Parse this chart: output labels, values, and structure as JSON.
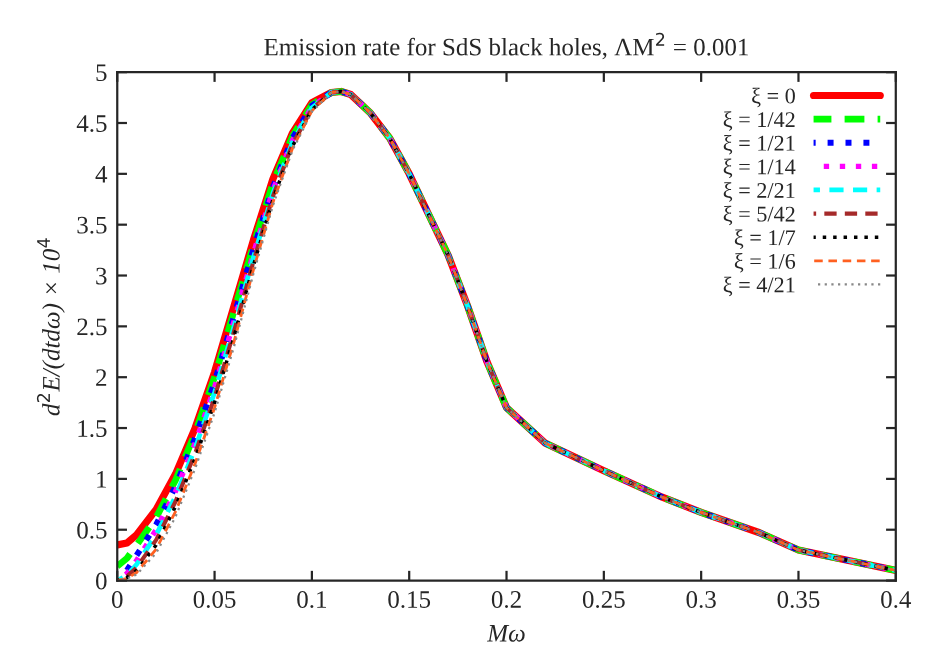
{
  "chart_data": {
    "type": "line",
    "title": "Emission rate for SdS black holes, ΛM$^{2}$ = 0.001",
    "xlabel": "Mω",
    "ylabel": "d$^{2}$E/(dtdω) × 10$^{4}$",
    "x": [
      0,
      0.005,
      0.01,
      0.02,
      0.03,
      0.04,
      0.05,
      0.06,
      0.07,
      0.08,
      0.09,
      0.1,
      0.11,
      0.115,
      0.12,
      0.13,
      0.14,
      0.15,
      0.16,
      0.17,
      0.18,
      0.19,
      0.2,
      0.22,
      0.25,
      0.28,
      0.3,
      0.33,
      0.35,
      0.38,
      0.4
    ],
    "xlim": [
      0,
      0.4
    ],
    "ylim": [
      0,
      5
    ],
    "xticks": [
      0,
      0.05,
      0.1,
      0.15,
      0.2,
      0.25,
      0.3,
      0.35,
      0.4
    ],
    "yticks": [
      0,
      0.5,
      1,
      1.5,
      2,
      2.5,
      3,
      3.5,
      4,
      4.5,
      5
    ],
    "legend": "top right",
    "grid": false,
    "series": [
      {
        "name": "ξ = 0",
        "color": "#ff0000",
        "line_style": "solid",
        "values": [
          0.35,
          0.37,
          0.45,
          0.7,
          1.05,
          1.5,
          2.05,
          2.7,
          3.35,
          3.95,
          4.4,
          4.7,
          4.8,
          4.81,
          4.78,
          4.6,
          4.35,
          4.0,
          3.6,
          3.2,
          2.7,
          2.15,
          1.7,
          1.35,
          1.08,
          0.82,
          0.67,
          0.47,
          0.3,
          0.18,
          0.1
        ]
      },
      {
        "name": "ξ = 1/42",
        "color": "#00ff00",
        "line_style": "dashed",
        "values": [
          0.14,
          0.22,
          0.35,
          0.62,
          0.99,
          1.45,
          2.0,
          2.65,
          3.3,
          3.91,
          4.37,
          4.68,
          4.8,
          4.81,
          4.78,
          4.6,
          4.35,
          4.0,
          3.6,
          3.2,
          2.7,
          2.15,
          1.7,
          1.35,
          1.08,
          0.82,
          0.67,
          0.47,
          0.3,
          0.18,
          0.1
        ]
      },
      {
        "name": "ξ = 1/21",
        "color": "#0000ff",
        "line_style": "dotted",
        "values": [
          0,
          0.1,
          0.25,
          0.55,
          0.93,
          1.4,
          1.95,
          2.6,
          3.26,
          3.87,
          4.35,
          4.67,
          4.8,
          4.81,
          4.78,
          4.6,
          4.35,
          4.0,
          3.6,
          3.2,
          2.7,
          2.15,
          1.7,
          1.35,
          1.08,
          0.82,
          0.67,
          0.47,
          0.3,
          0.18,
          0.1
        ]
      },
      {
        "name": "ξ = 1/14",
        "color": "#ff00ff",
        "line_style": "dotted",
        "values": [
          0,
          0.07,
          0.2,
          0.5,
          0.88,
          1.35,
          1.9,
          2.55,
          3.22,
          3.84,
          4.33,
          4.66,
          4.8,
          4.81,
          4.78,
          4.6,
          4.35,
          4.0,
          3.6,
          3.2,
          2.7,
          2.15,
          1.7,
          1.35,
          1.08,
          0.82,
          0.67,
          0.47,
          0.3,
          0.18,
          0.1
        ]
      },
      {
        "name": "ξ = 2/21",
        "color": "#00ffff",
        "line_style": "dashed",
        "values": [
          0,
          0.05,
          0.16,
          0.45,
          0.83,
          1.3,
          1.85,
          2.5,
          3.18,
          3.81,
          4.31,
          4.65,
          4.8,
          4.81,
          4.78,
          4.6,
          4.35,
          4.0,
          3.6,
          3.2,
          2.7,
          2.15,
          1.7,
          1.35,
          1.08,
          0.82,
          0.67,
          0.47,
          0.3,
          0.18,
          0.1
        ]
      },
      {
        "name": "ξ = 5/42",
        "color": "#a52a2a",
        "line_style": "dashed",
        "values": [
          0,
          0.04,
          0.13,
          0.4,
          0.78,
          1.25,
          1.8,
          2.45,
          3.14,
          3.78,
          4.29,
          4.64,
          4.8,
          4.81,
          4.78,
          4.6,
          4.35,
          4.0,
          3.6,
          3.2,
          2.7,
          2.15,
          1.7,
          1.35,
          1.08,
          0.82,
          0.67,
          0.47,
          0.3,
          0.18,
          0.1
        ]
      },
      {
        "name": "ξ = 1/7",
        "color": "#000000",
        "line_style": "dotted",
        "values": [
          0,
          0.03,
          0.1,
          0.35,
          0.73,
          1.2,
          1.75,
          2.4,
          3.1,
          3.75,
          4.27,
          4.63,
          4.8,
          4.81,
          4.78,
          4.6,
          4.35,
          4.0,
          3.6,
          3.2,
          2.7,
          2.15,
          1.7,
          1.35,
          1.08,
          0.82,
          0.67,
          0.47,
          0.3,
          0.18,
          0.1
        ]
      },
      {
        "name": "ξ = 1/6",
        "color": "#ff6020",
        "line_style": "dashed",
        "values": [
          0,
          0.02,
          0.08,
          0.31,
          0.68,
          1.15,
          1.7,
          2.35,
          3.06,
          3.72,
          4.25,
          4.62,
          4.8,
          4.81,
          4.78,
          4.6,
          4.35,
          4.0,
          3.6,
          3.2,
          2.7,
          2.15,
          1.7,
          1.35,
          1.08,
          0.82,
          0.67,
          0.47,
          0.3,
          0.18,
          0.1
        ]
      },
      {
        "name": "ξ = 4/21",
        "color": "#888888",
        "line_style": "dotted",
        "values": [
          0,
          0.02,
          0.06,
          0.27,
          0.63,
          1.1,
          1.65,
          2.3,
          3.02,
          3.69,
          4.23,
          4.61,
          4.8,
          4.81,
          4.78,
          4.6,
          4.35,
          4.0,
          3.6,
          3.2,
          2.7,
          2.15,
          1.7,
          1.35,
          1.08,
          0.82,
          0.67,
          0.47,
          0.3,
          0.18,
          0.1
        ]
      }
    ]
  }
}
